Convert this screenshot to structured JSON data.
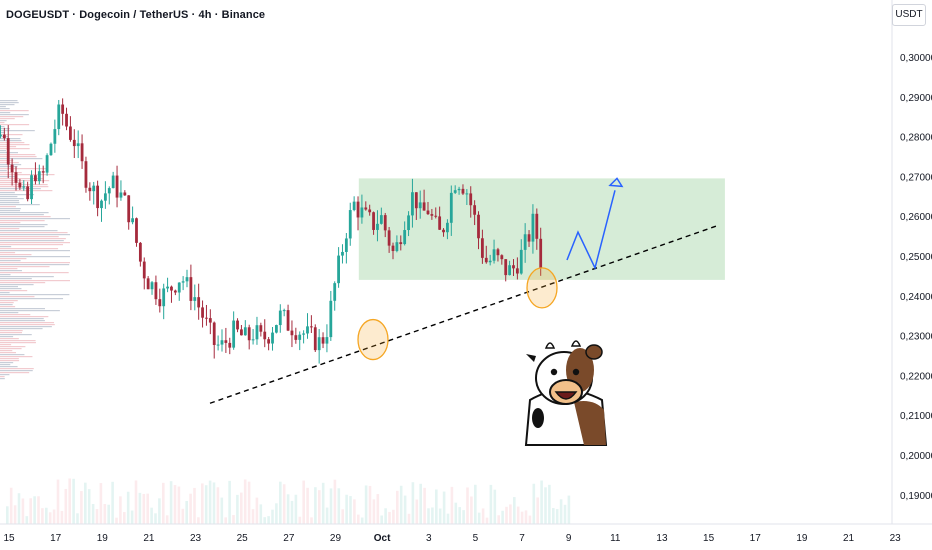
{
  "header": {
    "title": "DOGEUSDT · Dogecoin / TetherUS · 4h · Binance",
    "currency": "USDT"
  },
  "chart_data": {
    "type": "candlestick",
    "y_axis": {
      "ticks": [
        "0,30000",
        "0,29000",
        "0,28000",
        "0,27000",
        "0,26000",
        "0,25000",
        "0,24000",
        "0,23000",
        "0,22000",
        "0,21000",
        "0,20000",
        "0,19000"
      ],
      "range": [
        0.185,
        0.313
      ]
    },
    "x_axis": {
      "ticks": [
        "15",
        "17",
        "19",
        "21",
        "23",
        "25",
        "27",
        "29",
        "Oct",
        "3",
        "5",
        "7",
        "9",
        "11",
        "13",
        "15",
        "17",
        "19",
        "21",
        "23"
      ]
    },
    "price_path": [
      [
        0.2605,
        0.2715,
        0.2775,
        0.2825,
        0.276
      ],
      [
        0.272,
        0.265,
        0.264,
        0.272,
        0.268
      ],
      [
        0.275,
        0.282,
        0.287,
        0.282,
        0.279
      ],
      [
        0.273,
        0.269,
        0.266,
        0.264,
        0.267
      ],
      [
        0.268,
        0.265,
        0.262,
        0.256,
        0.248
      ],
      [
        0.244,
        0.242,
        0.24,
        0.241,
        0.243
      ],
      [
        0.245,
        0.242,
        0.24,
        0.236,
        0.232
      ],
      [
        0.228,
        0.227,
        0.229,
        0.231,
        0.23
      ],
      [
        0.229,
        0.231,
        0.229,
        0.23,
        0.233
      ],
      [
        0.235,
        0.233,
        0.232,
        0.231,
        0.23
      ],
      [
        0.229,
        0.228,
        0.232,
        0.242,
        0.25
      ],
      [
        0.258,
        0.263,
        0.261,
        0.259,
        0.258
      ],
      [
        0.26,
        0.255,
        0.25,
        0.256,
        0.262
      ],
      [
        0.266,
        0.26,
        0.262,
        0.258,
        0.255
      ],
      [
        0.261,
        0.269,
        0.269,
        0.266,
        0.26
      ],
      [
        0.252,
        0.248,
        0.25,
        0.248,
        0.246
      ],
      [
        0.247,
        0.25,
        0.254,
        0.259,
        0.249
      ]
    ],
    "zone": {
      "label": "green range",
      "y_top": 0.2695,
      "y_bottom": 0.244,
      "x_start": "Sep 30",
      "x_end": "Oct 15.7",
      "color": "#c8e6c9"
    },
    "trendline": {
      "style": "dashed",
      "color": "#000000"
    },
    "projection": {
      "color": "#2962ff"
    },
    "highlights": [
      {
        "color": "#f5a623"
      },
      {
        "color": "#f5a623"
      }
    ],
    "colors": {
      "up": "#26a69a",
      "down": "#a52a3c"
    }
  }
}
